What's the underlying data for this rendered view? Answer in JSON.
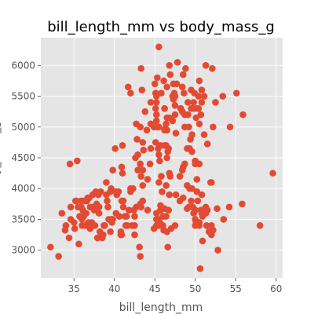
{
  "chart_data": {
    "type": "scatter",
    "title": "bill_length_mm vs body_mass_g",
    "xlabel": "bill_length_mm",
    "ylabel": "body_mass_g",
    "xlim": [
      30.9,
      60.8
    ],
    "ylim": [
      2550,
      6450
    ],
    "xticks": [
      35,
      40,
      45,
      50,
      55,
      60
    ],
    "yticks": [
      3000,
      3500,
      4000,
      4500,
      5000,
      5500,
      6000
    ],
    "grid": true,
    "style": "ggplot",
    "colors": {
      "panel": "#e5e5e5",
      "grid": "#ffffff",
      "point": "#e24a33",
      "text": "#555555"
    },
    "x": [
      32.1,
      33.1,
      33.5,
      34.0,
      34.4,
      34.5,
      34.6,
      35.0,
      35.1,
      35.2,
      35.3,
      35.5,
      35.6,
      35.7,
      35.9,
      36.0,
      36.2,
      36.4,
      36.5,
      36.6,
      36.7,
      36.8,
      37.0,
      37.2,
      37.3,
      37.5,
      37.6,
      37.7,
      37.8,
      37.9,
      38.1,
      38.2,
      38.5,
      38.6,
      38.8,
      39.0,
      39.1,
      39.2,
      39.5,
      39.6,
      39.7,
      39.8,
      40.1,
      40.2,
      40.3,
      40.6,
      40.8,
      41.1,
      41.1,
      41.4,
      41.5,
      41.6,
      41.8,
      42.0,
      42.2,
      42.5,
      42.7,
      43.1,
      43.2,
      43.3,
      43.5,
      44.1,
      44.9,
      45.2,
      45.6,
      46.0,
      34.6,
      36.0,
      37.3,
      38.7,
      39.6,
      40.9,
      42.3,
      42.9,
      35.8,
      36.9,
      38.3,
      39.3,
      40.5,
      41.3,
      42.0,
      44.1,
      33.9,
      35.4,
      37.0,
      38.0,
      39.8,
      41.0,
      36.3,
      38.1,
      36.1,
      39.0,
      40.2,
      37.8,
      35.9,
      43.2,
      41.0,
      39.5,
      40.8,
      46.5,
      50.0,
      51.3,
      45.4,
      52.7,
      45.2,
      46.1,
      51.3,
      46.0,
      51.3,
      46.6,
      51.7,
      47.0,
      52.0,
      45.9,
      50.5,
      50.3,
      58.0,
      46.4,
      49.2,
      42.4,
      48.5,
      43.2,
      50.6,
      46.7,
      52.0,
      50.5,
      49.5,
      46.4,
      52.8,
      40.9,
      54.2,
      42.5,
      51.0,
      49.7,
      47.5,
      47.6,
      52.0,
      46.9,
      53.5,
      49.0,
      46.2,
      50.9,
      45.5,
      50.9,
      50.8,
      50.1,
      49.0,
      51.5,
      49.8,
      48.1,
      51.4,
      45.7,
      50.7,
      42.5,
      52.2,
      45.2,
      49.3,
      50.2,
      45.6,
      51.9,
      46.8,
      45.7,
      55.8,
      43.5,
      49.6,
      50.8,
      50.2,
      46.1,
      50.0,
      48.7,
      50.0,
      47.6,
      46.5,
      45.4,
      46.7,
      43.3,
      46.8,
      40.9,
      49.0,
      45.5,
      48.4,
      45.8,
      49.3,
      42.0,
      49.2,
      46.2,
      48.7,
      50.2,
      45.1,
      46.5,
      46.3,
      42.9,
      46.1,
      44.5,
      47.8,
      48.2,
      50.0,
      47.3,
      42.8,
      45.1,
      59.6,
      49.1,
      48.4,
      42.6,
      44.4,
      44.0,
      48.7,
      42.7,
      49.6,
      45.3,
      49.6,
      50.5,
      43.6,
      45.5,
      50.5,
      44.9,
      45.2,
      46.6,
      48.5,
      45.1,
      50.1,
      46.5,
      45.0,
      43.8,
      45.5,
      43.2,
      50.4,
      45.3,
      46.2,
      45.7,
      54.3,
      45.8,
      49.8,
      46.2,
      49.5,
      43.5,
      50.7,
      47.7,
      46.4,
      48.2,
      46.5,
      46.4,
      48.6,
      47.5,
      51.1,
      45.2,
      45.2,
      49.1,
      52.5,
      47.4,
      50.0,
      44.9,
      50.8,
      43.4,
      51.3,
      47.5,
      52.1,
      47.5,
      52.2,
      45.5,
      49.5,
      44.5,
      50.8,
      49.4,
      46.9,
      48.4,
      51.1,
      48.5,
      55.9,
      47.2,
      49.1,
      47.3,
      46.8,
      41.7,
      53.4,
      43.3,
      48.1,
      50.5,
      49.8,
      43.5,
      51.5,
      46.2,
      55.1,
      44.5,
      48.8,
      47.2,
      46.8,
      50.4,
      45.2,
      49.9
    ],
    "y": [
      3050,
      2900,
      3600,
      3400,
      3200,
      4400,
      3700,
      3450,
      3350,
      3800,
      3800,
      3700,
      3100,
      3550,
      3700,
      3500,
      3550,
      3400,
      3600,
      3800,
      3850,
      3450,
      3350,
      3450,
      3900,
      3650,
      3400,
      3950,
      3700,
      3200,
      3700,
      3300,
      3200,
      3250,
      3400,
      3900,
      3800,
      3700,
      3300,
      3500,
      3450,
      3500,
      4650,
      3950,
      3900,
      3550,
      3250,
      3700,
      3800,
      3400,
      3550,
      3400,
      3650,
      3950,
      3400,
      3550,
      3700,
      3050,
      2900,
      3700,
      3800,
      3650,
      3350,
      3600,
      3450,
      3400,
      3500,
      3400,
      3700,
      3400,
      4000,
      3800,
      4000,
      4300,
      3550,
      3850,
      3950,
      3500,
      3950,
      3550,
      4000,
      4150,
      3325,
      4450,
      3700,
      3900,
      4300,
      4700,
      3800,
      3600,
      3650,
      4100,
      3600,
      3750,
      3800,
      4400,
      4250,
      3950,
      3300,
      3300,
      3400,
      3650,
      3500,
      3675,
      3400,
      3550,
      3600,
      3550,
      3700,
      3050,
      3300,
      3350,
      3400,
      3950,
      3400,
      3800,
      3400,
      4050,
      3700,
      3650,
      3850,
      3750,
      2700,
      3650,
      4100,
      3450,
      3800,
      3550,
      3000,
      3250,
      3700,
      3400,
      3600,
      3700,
      3400,
      3900,
      3250,
      4200,
      3500,
      3675,
      3675,
      3550,
      3400,
      3150,
      3600,
      3450,
      4050,
      3650,
      3600,
      3800,
      3400,
      3650,
      3650,
      3250,
      3325,
      3500,
      4000,
      3950,
      4450,
      4100,
      3900,
      3725,
      3750,
      4050,
      4000,
      3900,
      4150,
      3325,
      3650,
      4400,
      3500,
      4900,
      4500,
      4650,
      4650,
      4200,
      4250,
      4350,
      4650,
      4100,
      4300,
      4200,
      4650,
      5550,
      5000,
      4700,
      5200,
      5300,
      4750,
      5150,
      4975,
      4550,
      5750,
      4650,
      6050,
      5300,
      4450,
      5450,
      4800,
      5550,
      4250,
      5400,
      5250,
      4500,
      4400,
      4950,
      5000,
      5050,
      4600,
      5000,
      4875,
      5050,
      4625,
      4550,
      5750,
      5000,
      5100,
      4600,
      4350,
      5300,
      5150,
      4950,
      5700,
      5250,
      5000,
      5000,
      5500,
      5800,
      5300,
      4700,
      5000,
      5550,
      5300,
      5300,
      5600,
      4750,
      5200,
      5700,
      5050,
      5300,
      5650,
      4700,
      5550,
      5350,
      4875,
      5200,
      5500,
      5200,
      5400,
      5550,
      4400,
      5000,
      5400,
      5600,
      6000,
      5500,
      5950,
      5200,
      5000,
      6300,
      5300,
      5400,
      5600,
      4800,
      5850,
      5650,
      5500,
      5850,
      5200,
      5100,
      5400,
      5700,
      5150,
      5650,
      5500,
      5950,
      4200,
      4400,
      5400,
      4300,
      4725,
      4950,
      5550,
      5050,
      5950,
      5500,
      6000,
      5300,
      5400,
      5550
    ],
    "style_note": ""
  }
}
